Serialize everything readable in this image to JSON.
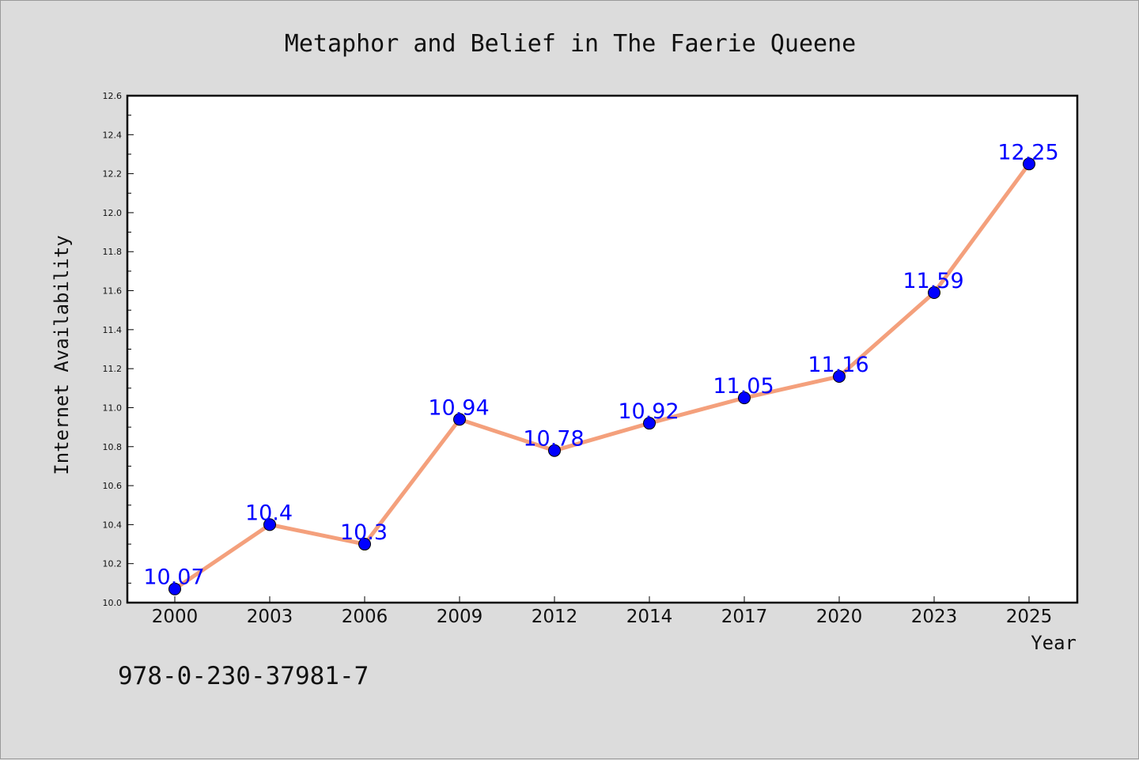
{
  "chart_data": {
    "type": "line",
    "title": "Metaphor and Belief in The Faerie Queene",
    "xlabel": "Year",
    "ylabel": "Internet Availability",
    "categories": [
      "2000",
      "2003",
      "2006",
      "2009",
      "2012",
      "2014",
      "2017",
      "2020",
      "2023",
      "2025"
    ],
    "series": [
      {
        "values": [
          10.07,
          10.4,
          10.3,
          10.94,
          10.78,
          10.92,
          11.05,
          11.16,
          11.59,
          12.25
        ],
        "data_labels": [
          "10.07",
          "10.4",
          "10.3",
          "10.94",
          "10.78",
          "10.92",
          "11.05",
          "11.16",
          "11.59",
          "12.25"
        ],
        "line_color": "#f4a07c",
        "marker_color": "#0000ff"
      }
    ],
    "ylim": [
      10.0,
      12.6
    ],
    "yticks": [
      "10.0",
      "10.2",
      "10.4",
      "10.6",
      "10.8",
      "11.0",
      "11.2",
      "11.4",
      "11.6",
      "11.8",
      "12.0",
      "12.2",
      "12.4",
      "12.6"
    ],
    "grid": false,
    "legend": "none"
  },
  "footer": {
    "isbn": "978-0-230-37981-7"
  },
  "colors": {
    "background": "#dcdcdc",
    "plot_background": "#ffffff"
  }
}
